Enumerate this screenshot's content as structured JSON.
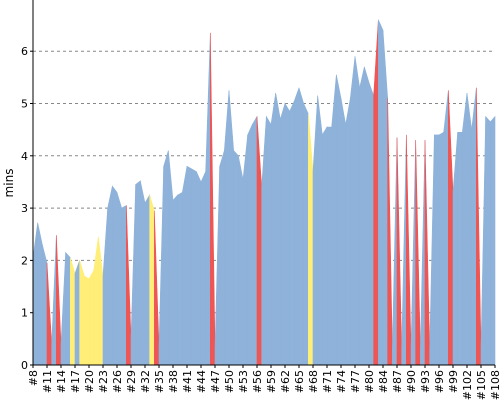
{
  "chart_data": {
    "type": "area",
    "title": "",
    "xlabel": "",
    "ylabel": "mins",
    "ylim": [
      0,
      7
    ],
    "yticks": [
      0,
      1,
      2,
      3,
      4,
      5,
      6
    ],
    "grid": "horizontal-dashed",
    "legend": "none",
    "colors": {
      "normal": "#8eb2d9",
      "warning": "#ffee77",
      "failure": "#ee5555",
      "grid": "#888888",
      "axis": "#000000"
    },
    "x_tick_labels": [
      "#8",
      "#11",
      "#14",
      "#17",
      "#20",
      "#23",
      "#26",
      "#29",
      "#32",
      "#35",
      "#38",
      "#41",
      "#44",
      "#47",
      "#50",
      "#53",
      "#56",
      "#59",
      "#62",
      "#65",
      "#68",
      "#71",
      "#74",
      "#77",
      "#80",
      "#84",
      "#87",
      "#90",
      "#93",
      "#96",
      "#99",
      "#102",
      "#105",
      "#108"
    ],
    "builds": [
      {
        "label": "#8",
        "value": 2.05,
        "status": "normal"
      },
      {
        "label": "#9",
        "value": 2.72,
        "status": "normal"
      },
      {
        "label": "#10",
        "value": 2.3,
        "status": "normal"
      },
      {
        "label": "#11",
        "value": 1.95,
        "status": "normal"
      },
      {
        "label": "#12",
        "value": 0.4,
        "status": "failure"
      },
      {
        "label": "#13",
        "value": 2.48,
        "status": "normal"
      },
      {
        "label": "#14",
        "value": 0.4,
        "status": "failure"
      },
      {
        "label": "#15",
        "value": 2.15,
        "status": "normal"
      },
      {
        "label": "#16",
        "value": 2.05,
        "status": "normal"
      },
      {
        "label": "#17",
        "value": 1.75,
        "status": "warning"
      },
      {
        "label": "#18",
        "value": 2.0,
        "status": "normal"
      },
      {
        "label": "#19",
        "value": 1.7,
        "status": "warning"
      },
      {
        "label": "#20",
        "value": 1.65,
        "status": "warning"
      },
      {
        "label": "#21",
        "value": 1.8,
        "status": "warning"
      },
      {
        "label": "#22",
        "value": 2.45,
        "status": "warning"
      },
      {
        "label": "#23",
        "value": 1.7,
        "status": "warning"
      },
      {
        "label": "#24",
        "value": 3.0,
        "status": "normal"
      },
      {
        "label": "#25",
        "value": 3.42,
        "status": "normal"
      },
      {
        "label": "#26",
        "value": 3.3,
        "status": "normal"
      },
      {
        "label": "#27",
        "value": 3.0,
        "status": "normal"
      },
      {
        "label": "#28",
        "value": 3.05,
        "status": "normal"
      },
      {
        "label": "#29",
        "value": 0.5,
        "status": "failure"
      },
      {
        "label": "#30",
        "value": 3.45,
        "status": "normal"
      },
      {
        "label": "#31",
        "value": 3.52,
        "status": "normal"
      },
      {
        "label": "#32",
        "value": 3.1,
        "status": "normal"
      },
      {
        "label": "#33",
        "value": 3.25,
        "status": "normal"
      },
      {
        "label": "#34",
        "value": 2.95,
        "status": "warning"
      },
      {
        "label": "#35",
        "value": 0.35,
        "status": "failure"
      },
      {
        "label": "#36",
        "value": 3.8,
        "status": "normal"
      },
      {
        "label": "#37",
        "value": 4.1,
        "status": "normal"
      },
      {
        "label": "#38",
        "value": 3.15,
        "status": "normal"
      },
      {
        "label": "#39",
        "value": 3.25,
        "status": "normal"
      },
      {
        "label": "#40",
        "value": 3.3,
        "status": "normal"
      },
      {
        "label": "#41",
        "value": 3.8,
        "status": "normal"
      },
      {
        "label": "#42",
        "value": 3.75,
        "status": "normal"
      },
      {
        "label": "#43",
        "value": 3.7,
        "status": "normal"
      },
      {
        "label": "#44",
        "value": 3.5,
        "status": "normal"
      },
      {
        "label": "#45",
        "value": 3.7,
        "status": "normal"
      },
      {
        "label": "#46",
        "value": 6.35,
        "status": "normal"
      },
      {
        "label": "#47",
        "value": 0.3,
        "status": "failure"
      },
      {
        "label": "#48",
        "value": 3.8,
        "status": "normal"
      },
      {
        "label": "#49",
        "value": 4.1,
        "status": "normal"
      },
      {
        "label": "#50",
        "value": 5.25,
        "status": "normal"
      },
      {
        "label": "#51",
        "value": 4.1,
        "status": "normal"
      },
      {
        "label": "#52",
        "value": 4.0,
        "status": "normal"
      },
      {
        "label": "#53",
        "value": 3.55,
        "status": "normal"
      },
      {
        "label": "#54",
        "value": 4.4,
        "status": "normal"
      },
      {
        "label": "#55",
        "value": 4.6,
        "status": "normal"
      },
      {
        "label": "#56",
        "value": 4.75,
        "status": "normal"
      },
      {
        "label": "#57",
        "value": 3.4,
        "status": "failure"
      },
      {
        "label": "#58",
        "value": 4.75,
        "status": "normal"
      },
      {
        "label": "#59",
        "value": 4.6,
        "status": "normal"
      },
      {
        "label": "#60",
        "value": 5.2,
        "status": "normal"
      },
      {
        "label": "#61",
        "value": 4.7,
        "status": "normal"
      },
      {
        "label": "#62",
        "value": 5.0,
        "status": "normal"
      },
      {
        "label": "#63",
        "value": 4.85,
        "status": "normal"
      },
      {
        "label": "#64",
        "value": 5.05,
        "status": "normal"
      },
      {
        "label": "#65",
        "value": 5.3,
        "status": "normal"
      },
      {
        "label": "#66",
        "value": 5.0,
        "status": "normal"
      },
      {
        "label": "#67",
        "value": 4.8,
        "status": "normal"
      },
      {
        "label": "#68",
        "value": 3.7,
        "status": "warning"
      },
      {
        "label": "#69",
        "value": 5.15,
        "status": "normal"
      },
      {
        "label": "#70",
        "value": 4.4,
        "status": "normal"
      },
      {
        "label": "#71",
        "value": 4.55,
        "status": "normal"
      },
      {
        "label": "#72",
        "value": 4.55,
        "status": "normal"
      },
      {
        "label": "#73",
        "value": 5.55,
        "status": "normal"
      },
      {
        "label": "#74",
        "value": 5.1,
        "status": "normal"
      },
      {
        "label": "#75",
        "value": 4.6,
        "status": "normal"
      },
      {
        "label": "#76",
        "value": 5.1,
        "status": "normal"
      },
      {
        "label": "#77",
        "value": 5.9,
        "status": "normal"
      },
      {
        "label": "#78",
        "value": 5.3,
        "status": "normal"
      },
      {
        "label": "#79",
        "value": 5.7,
        "status": "normal"
      },
      {
        "label": "#80",
        "value": 5.4,
        "status": "normal"
      },
      {
        "label": "#81",
        "value": 5.15,
        "status": "normal"
      },
      {
        "label": "#82",
        "value": 6.6,
        "status": "failure"
      },
      {
        "label": "#84",
        "value": 6.4,
        "status": "normal"
      },
      {
        "label": "#85",
        "value": 5.1,
        "status": "normal"
      },
      {
        "label": "#86",
        "value": 0.3,
        "status": "failure"
      },
      {
        "label": "#87",
        "value": 4.35,
        "status": "normal"
      },
      {
        "label": "#88",
        "value": 0.3,
        "status": "failure"
      },
      {
        "label": "#89",
        "value": 4.4,
        "status": "normal"
      },
      {
        "label": "#90",
        "value": 0.3,
        "status": "failure"
      },
      {
        "label": "#91",
        "value": 4.3,
        "status": "normal"
      },
      {
        "label": "#92",
        "value": 0.3,
        "status": "failure"
      },
      {
        "label": "#93",
        "value": 4.3,
        "status": "normal"
      },
      {
        "label": "#94",
        "value": 0.3,
        "status": "failure"
      },
      {
        "label": "#95",
        "value": 4.4,
        "status": "normal"
      },
      {
        "label": "#96",
        "value": 4.4,
        "status": "normal"
      },
      {
        "label": "#97",
        "value": 4.45,
        "status": "normal"
      },
      {
        "label": "#98",
        "value": 5.25,
        "status": "normal"
      },
      {
        "label": "#99",
        "value": 3.3,
        "status": "failure"
      },
      {
        "label": "#100",
        "value": 4.45,
        "status": "normal"
      },
      {
        "label": "#101",
        "value": 4.45,
        "status": "normal"
      },
      {
        "label": "#102",
        "value": 5.2,
        "status": "normal"
      },
      {
        "label": "#103",
        "value": 4.5,
        "status": "normal"
      },
      {
        "label": "#104",
        "value": 5.3,
        "status": "normal"
      },
      {
        "label": "#105",
        "value": 0.3,
        "status": "failure"
      },
      {
        "label": "#106",
        "value": 4.75,
        "status": "normal"
      },
      {
        "label": "#107",
        "value": 4.65,
        "status": "normal"
      },
      {
        "label": "#108",
        "value": 4.75,
        "status": "normal"
      }
    ]
  }
}
